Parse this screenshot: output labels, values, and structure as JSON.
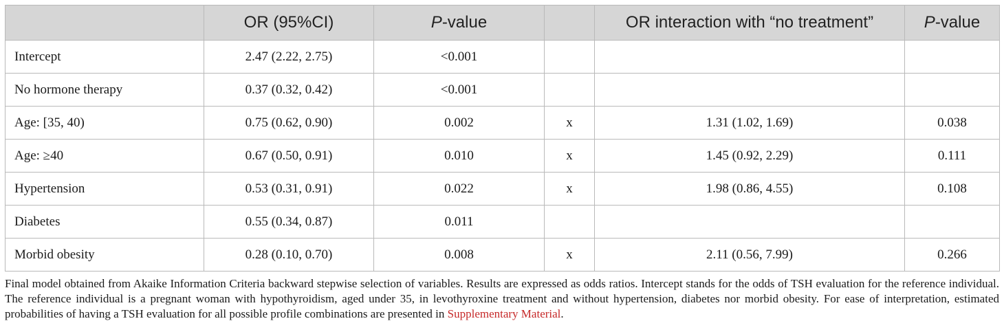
{
  "header": {
    "col0": "",
    "col1": "OR (95%CI)",
    "col2_italic": "P",
    "col2_rest": "-value",
    "col3": "",
    "col4": "OR interaction with “no treatment”",
    "col5_italic": "P",
    "col5_rest": "-value"
  },
  "rows": [
    {
      "label": "Intercept",
      "or": "2.47 (2.22, 2.75)",
      "p": "<0.001",
      "x": "",
      "or_int": "",
      "p_int": ""
    },
    {
      "label": "No hormone therapy",
      "or": "0.37 (0.32, 0.42)",
      "p": "<0.001",
      "x": "",
      "or_int": "",
      "p_int": ""
    },
    {
      "label": "Age: [35, 40)",
      "or": "0.75 (0.62, 0.90)",
      "p": "0.002",
      "x": "x",
      "or_int": "1.31 (1.02, 1.69)",
      "p_int": "0.038"
    },
    {
      "label": "Age: ≥40",
      "or": "0.67 (0.50, 0.91)",
      "p": "0.010",
      "x": "x",
      "or_int": "1.45 (0.92, 2.29)",
      "p_int": "0.111"
    },
    {
      "label": "Hypertension",
      "or": "0.53 (0.31, 0.91)",
      "p": "0.022",
      "x": "x",
      "or_int": "1.98 (0.86, 4.55)",
      "p_int": "0.108"
    },
    {
      "label": "Diabetes",
      "or": "0.55 (0.34, 0.87)",
      "p": "0.011",
      "x": "",
      "or_int": "",
      "p_int": ""
    },
    {
      "label": "Morbid obesity",
      "or": "0.28 (0.10, 0.70)",
      "p": "0.008",
      "x": "x",
      "or_int": "2.11 (0.56, 7.99)",
      "p_int": "0.266"
    }
  ],
  "caption": {
    "text": "Final model obtained from Akaike Information Criteria backward stepwise selection of variables. Results are expressed as odds ratios. Intercept stands for the odds of TSH evaluation for the reference individual. The reference individual is a pregnant woman with hypothyroidism, aged under 35, in levothyroxine treatment and without hypertension, diabetes nor morbid obesity. For ease of interpretation, estimated probabilities of having a TSH evaluation for all possible profile combinations are presented in ",
    "link": "Supplementary Material",
    "end": "."
  },
  "colors": {
    "header_bg": "#d6d6d6",
    "border": "#b9b9b9",
    "link": "#c62828"
  }
}
